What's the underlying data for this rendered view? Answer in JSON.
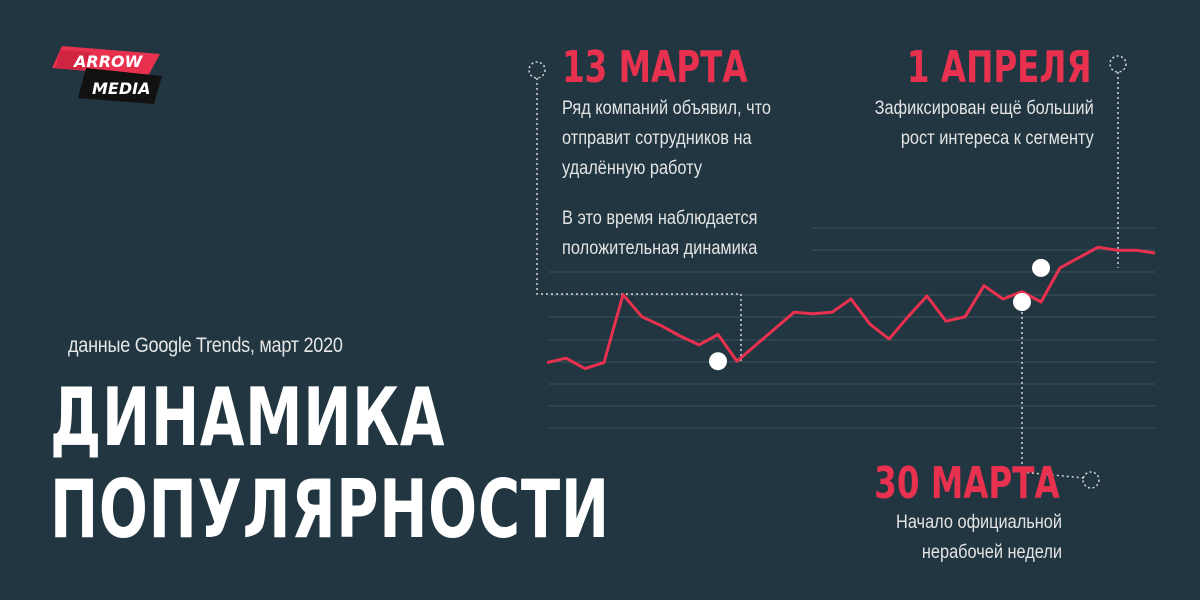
{
  "brand": {
    "line1": "ARROW",
    "line2": "MEDIA"
  },
  "source_note": "данные Google Trends, март 2020",
  "title": {
    "line1": "ДИНАМИКА",
    "line2": "ПОПУЛЯРНОСТИ"
  },
  "annotations": [
    {
      "date": "13 МАРТА",
      "lines": [
        "Ряд компаний объявил, что",
        "отправит сотрудников на",
        "удалённую работу",
        "",
        "В это время наблюдается",
        "положительная динамика"
      ]
    },
    {
      "date": "1 АПРЕЛЯ",
      "lines": [
        "Зафиксирован ещё больший",
        "рост интереса к сегменту"
      ]
    },
    {
      "date": "30 МАРТА",
      "lines": [
        "Начало официальной",
        "нерабочей недели"
      ]
    }
  ],
  "colors": {
    "background": "#213640",
    "line": "#e8314f",
    "accent": "#e8314f",
    "grid": "#3d535d",
    "marker": "#ffffff"
  },
  "chart_data": {
    "type": "line",
    "x": [
      "1",
      "2",
      "3",
      "4",
      "5",
      "6",
      "7",
      "8",
      "9",
      "10",
      "11",
      "12",
      "13",
      "14",
      "15",
      "16",
      "17",
      "18",
      "19",
      "20",
      "21",
      "22",
      "23",
      "24",
      "25",
      "26",
      "27",
      "28",
      "29",
      "30",
      "31",
      "32",
      "33"
    ],
    "series": [
      {
        "values": [
          7,
          10,
          3,
          7,
          53,
          38,
          32,
          25,
          19,
          26,
          8,
          19,
          30,
          41,
          40,
          41,
          50,
          33,
          23,
          38,
          52,
          35,
          38,
          59,
          50,
          55,
          48,
          71,
          78,
          85,
          83,
          83,
          81
        ]
      }
    ],
    "ylim": [
      0,
      100
    ],
    "grid": true,
    "markers": [
      {
        "x": "10",
        "y": 8,
        "annotation": 0
      },
      {
        "x": "26",
        "y": 48,
        "annotation": 2
      },
      {
        "x": "27",
        "y": 71,
        "annotation": 1
      }
    ]
  }
}
